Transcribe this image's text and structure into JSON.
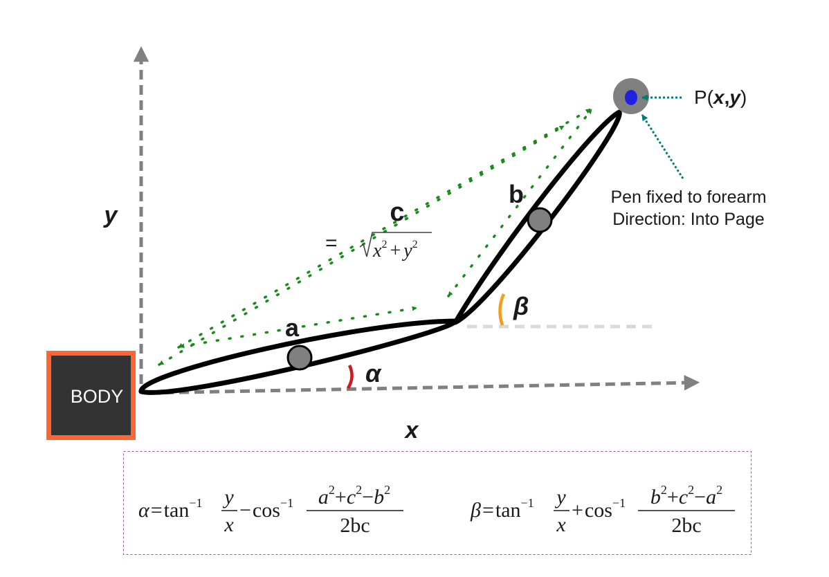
{
  "body_label": "BODY",
  "axes": {
    "x_label": "x",
    "y_label": "y"
  },
  "arm": {
    "upper_label": "a",
    "forearm_label": "b",
    "reach_label": "c",
    "reach_equals": "=",
    "reach_formula": {
      "x": "x",
      "y": "y",
      "power": "2",
      "plus": "+"
    }
  },
  "angles": {
    "alpha": "α",
    "beta": "β"
  },
  "pen": {
    "point_prefix": "P(",
    "point_x": "x",
    "point_comma": ",",
    "point_y": "y",
    "point_suffix": ")",
    "note_line1": "Pen fixed to forearm",
    "note_line2": "Direction: Into Page"
  },
  "formulas": {
    "alpha_eq": {
      "lhs": "α",
      "eq": "=",
      "func1": "tan",
      "func2": "cos",
      "inv": "−1",
      "y": "y",
      "x": "x",
      "op": "−",
      "numerator": {
        "t1": "a",
        "t2": "c",
        "t3": "b",
        "op1": "+",
        "op2": "−",
        "pow": "2"
      },
      "denominator": "2bc"
    },
    "beta_eq": {
      "lhs": "β",
      "eq": "=",
      "func1": "tan",
      "func2": "cos",
      "inv": "−1",
      "y": "y",
      "x": "x",
      "op": "+",
      "numerator": {
        "t1": "b",
        "t2": "c",
        "t3": "a",
        "op1": "+",
        "op2": "−",
        "pow": "2"
      },
      "denominator": "2bc"
    }
  },
  "colors": {
    "axis": "#808080",
    "arm": "#000000",
    "joint": "#808080",
    "pen_dot": "#2020e0",
    "body_fill": "#333333",
    "body_border": "#ff6633",
    "reach_arrows": "#1a8a1a",
    "pen_arrows": "#007b7b",
    "alpha_arc": "#c81e1e",
    "beta_arc": "#f39c1e",
    "formula_box": "#9b4f96"
  }
}
